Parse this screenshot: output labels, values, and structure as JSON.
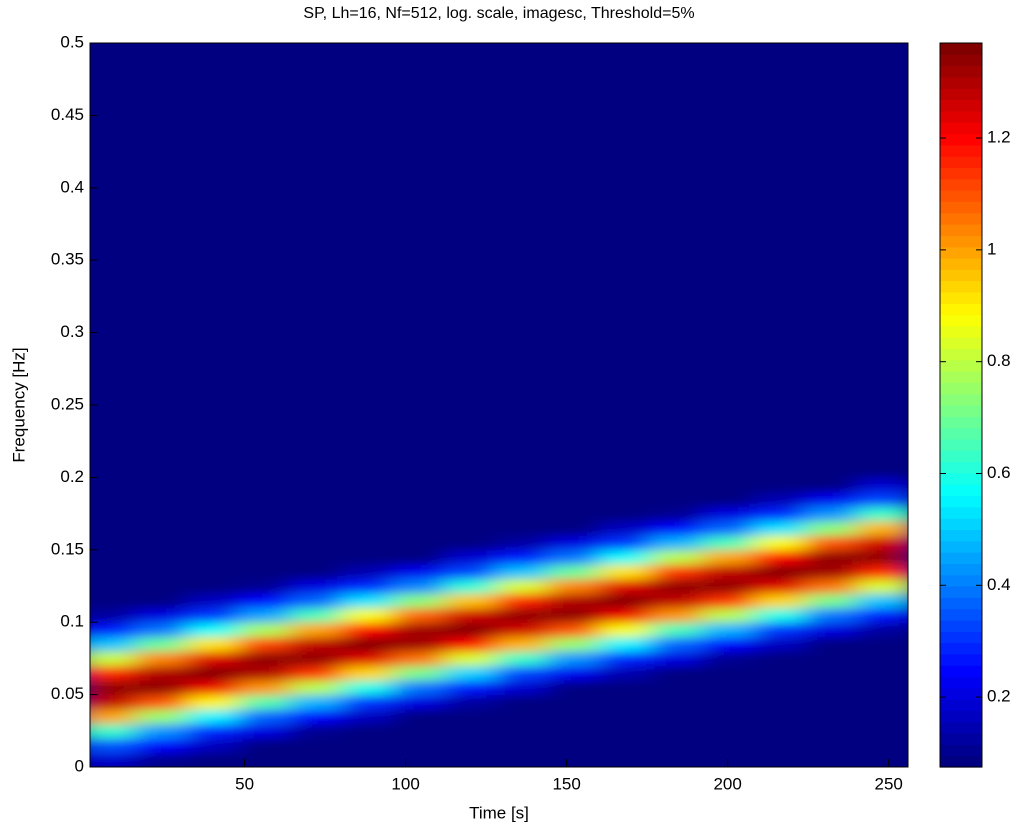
{
  "chart_data": {
    "type": "heatmap",
    "title": "SP, Lh=16, Nf=512, log. scale, imagesc, Threshold=5%",
    "x_label": "Time [s]",
    "y_label": "Frequency [Hz]",
    "xlim": [
      2,
      256
    ],
    "ylim": [
      0,
      0.5
    ],
    "xticks": [
      50,
      100,
      150,
      200,
      250
    ],
    "yticks": [
      0,
      0.05,
      0.1,
      0.15,
      0.2,
      0.25,
      0.3,
      0.35,
      0.4,
      0.45,
      0.5
    ],
    "colormap": "jet",
    "clim": [
      0.075,
      1.37
    ],
    "cticks": [
      0.2,
      0.4,
      0.6,
      0.8,
      1,
      1.2
    ],
    "x": [
      8,
      24,
      40,
      56,
      72,
      88,
      104,
      120,
      136,
      152,
      168,
      184,
      200,
      216,
      232,
      248
    ],
    "y": [
      0.005,
      0.015,
      0.025,
      0.035,
      0.045,
      0.055,
      0.065,
      0.075,
      0.085,
      0.095,
      0.105,
      0.115,
      0.125,
      0.135,
      0.145,
      0.155,
      0.165,
      0.175,
      0.185,
      0.195,
      0.205
    ],
    "values": [
      [
        0.18,
        0.35,
        0.64,
        1.0,
        1.28,
        1.35,
        1.16,
        0.82,
        0.48,
        0.25,
        0.12,
        0.07,
        0.07,
        0.07,
        0.07,
        0.07,
        0.07,
        0.07,
        0.07,
        0.07,
        0.07
      ],
      [
        0.09,
        0.23,
        0.43,
        0.76,
        1.11,
        1.34,
        1.31,
        1.04,
        0.69,
        0.38,
        0.2,
        0.07,
        0.07,
        0.07,
        0.07,
        0.07,
        0.07,
        0.07,
        0.07,
        0.07,
        0.07
      ],
      [
        0.07,
        0.15,
        0.29,
        0.54,
        0.89,
        1.22,
        1.37,
        1.24,
        0.91,
        0.56,
        0.3,
        0.15,
        0.07,
        0.07,
        0.07,
        0.07,
        0.07,
        0.07,
        0.07,
        0.07,
        0.07
      ],
      [
        0.07,
        0.07,
        0.19,
        0.37,
        0.67,
        1.03,
        1.3,
        1.34,
        1.13,
        0.78,
        0.45,
        0.24,
        0.1,
        0.07,
        0.07,
        0.07,
        0.07,
        0.07,
        0.07,
        0.07,
        0.07
      ],
      [
        0.07,
        0.07,
        0.1,
        0.24,
        0.46,
        0.79,
        1.14,
        1.35,
        1.29,
        1.01,
        0.65,
        0.36,
        0.19,
        0.07,
        0.07,
        0.07,
        0.07,
        0.07,
        0.07,
        0.07,
        0.07
      ],
      [
        0.07,
        0.07,
        0.07,
        0.16,
        0.31,
        0.58,
        0.93,
        1.25,
        1.36,
        1.21,
        0.87,
        0.52,
        0.28,
        0.14,
        0.07,
        0.07,
        0.07,
        0.07,
        0.07,
        0.07,
        0.07
      ],
      [
        0.07,
        0.07,
        0.07,
        0.07,
        0.2,
        0.39,
        0.71,
        1.07,
        1.32,
        1.33,
        1.09,
        0.73,
        0.41,
        0.22,
        0.08,
        0.07,
        0.07,
        0.07,
        0.07,
        0.07,
        0.07
      ],
      [
        0.07,
        0.07,
        0.07,
        0.07,
        0.12,
        0.26,
        0.5,
        0.84,
        1.2,
        1.36,
        1.26,
        0.96,
        0.61,
        0.33,
        0.17,
        0.07,
        0.07,
        0.07,
        0.07,
        0.07,
        0.07
      ],
      [
        0.07,
        0.07,
        0.07,
        0.07,
        0.07,
        0.17,
        0.33,
        0.62,
        0.98,
        1.27,
        1.35,
        1.17,
        0.83,
        0.49,
        0.26,
        0.12,
        0.07,
        0.07,
        0.07,
        0.07,
        0.07
      ],
      [
        0.07,
        0.07,
        0.07,
        0.07,
        0.07,
        0.08,
        0.22,
        0.42,
        0.75,
        1.1,
        1.34,
        1.31,
        1.05,
        0.69,
        0.38,
        0.2,
        0.07,
        0.07,
        0.07,
        0.07,
        0.07
      ],
      [
        0.07,
        0.07,
        0.07,
        0.07,
        0.07,
        0.07,
        0.14,
        0.28,
        0.54,
        0.88,
        1.22,
        1.37,
        1.24,
        0.92,
        0.57,
        0.31,
        0.16,
        0.07,
        0.07,
        0.07,
        0.07
      ],
      [
        0.07,
        0.07,
        0.07,
        0.07,
        0.07,
        0.07,
        0.07,
        0.19,
        0.36,
        0.66,
        1.02,
        1.29,
        1.35,
        1.14,
        0.79,
        0.46,
        0.24,
        0.1,
        0.07,
        0.07,
        0.07
      ],
      [
        0.07,
        0.07,
        0.07,
        0.07,
        0.07,
        0.07,
        0.07,
        0.1,
        0.24,
        0.46,
        0.79,
        1.14,
        1.35,
        1.29,
        1.01,
        0.65,
        0.36,
        0.19,
        0.07,
        0.07,
        0.07
      ],
      [
        0.07,
        0.07,
        0.07,
        0.07,
        0.07,
        0.07,
        0.07,
        0.07,
        0.16,
        0.31,
        0.58,
        0.93,
        1.25,
        1.36,
        1.21,
        0.87,
        0.52,
        0.28,
        0.14,
        0.07,
        0.07
      ],
      [
        0.07,
        0.07,
        0.07,
        0.07,
        0.07,
        0.07,
        0.07,
        0.07,
        0.07,
        0.2,
        0.39,
        0.71,
        1.07,
        1.32,
        1.34,
        1.1,
        0.74,
        0.42,
        0.22,
        0.08,
        0.07
      ],
      [
        0.07,
        0.07,
        0.07,
        0.07,
        0.07,
        0.07,
        0.07,
        0.07,
        0.07,
        0.12,
        0.26,
        0.49,
        0.83,
        1.17,
        1.35,
        1.27,
        0.98,
        0.62,
        0.33,
        0.17,
        0.07
      ]
    ]
  }
}
